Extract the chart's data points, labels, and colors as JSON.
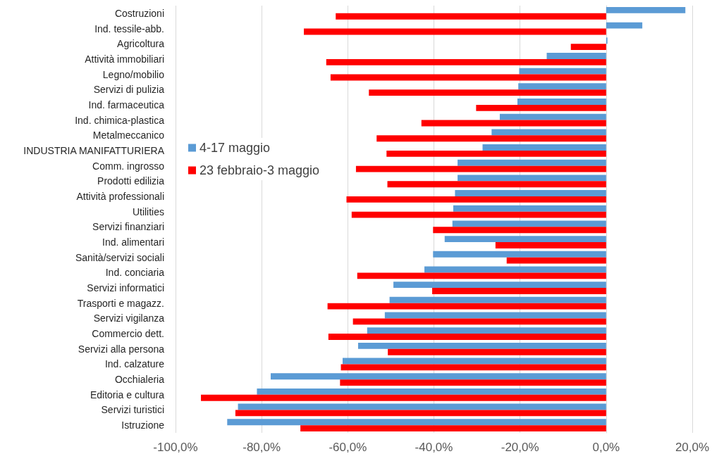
{
  "chart_data": {
    "type": "bar",
    "orientation": "horizontal",
    "categories": [
      "Costruzioni",
      "Ind. tessile-abb.",
      "Agricoltura",
      "Attività immobiliari",
      "Legno/mobilio",
      "Servizi di pulizia",
      "Ind. farmaceutica",
      "Ind. chimica-plastica",
      "Metalmeccanico",
      "INDUSTRIA MANIFATTURIERA",
      "Comm. ingrosso",
      "Prodotti edilizia",
      "Attività professionali",
      "Utilities",
      "Servizi finanziari",
      "Ind. alimentari",
      "Sanità/servizi sociali",
      "Ind. conciaria",
      "Servizi informatici",
      "Trasporti e magazz.",
      "Servizi vigilanza",
      "Commercio dett.",
      "Servizi alla persona",
      "Ind. calzature",
      "Occhialeria",
      "Editoria e cultura",
      "Servizi turistici",
      "Istruzione"
    ],
    "series": [
      {
        "name": "4-17 maggio",
        "color": "#5b9bd5",
        "values": [
          18.4,
          8.4,
          0.3,
          -13.8,
          -20.2,
          -20.4,
          -20.6,
          -24.7,
          -26.6,
          -28.7,
          -34.5,
          -34.5,
          -35.1,
          -35.5,
          -35.7,
          -37.5,
          -40.2,
          -42.2,
          -49.4,
          -50.3,
          -51.4,
          -55.5,
          -57.6,
          -61.2,
          -77.9,
          -81.1,
          -85.5,
          -88.0
        ]
      },
      {
        "name": "23 febbraio-3 maggio",
        "color": "#ff0000",
        "values": [
          -62.8,
          -70.2,
          -8.2,
          -65.0,
          -64.0,
          -55.1,
          -30.2,
          -42.9,
          -53.3,
          -51.0,
          -58.1,
          -50.8,
          -60.3,
          -59.1,
          -40.2,
          -25.7,
          -23.1,
          -57.8,
          -40.4,
          -64.7,
          -58.8,
          -64.5,
          -50.7,
          -61.6,
          -61.8,
          -94.1,
          -86.1,
          -71.0
        ]
      }
    ],
    "xlim": [
      -100,
      20
    ],
    "xticks": [
      {
        "value": -100,
        "label": "-100,0%"
      },
      {
        "value": -80,
        "label": "-80,0%"
      },
      {
        "value": -60,
        "label": "-60,0%"
      },
      {
        "value": -40,
        "label": "-40,0%"
      },
      {
        "value": -20,
        "label": "-20,0%"
      },
      {
        "value": 0,
        "label": "0,0%"
      },
      {
        "value": 20,
        "label": "20,0%"
      }
    ],
    "grid": "x",
    "legend": "left"
  }
}
